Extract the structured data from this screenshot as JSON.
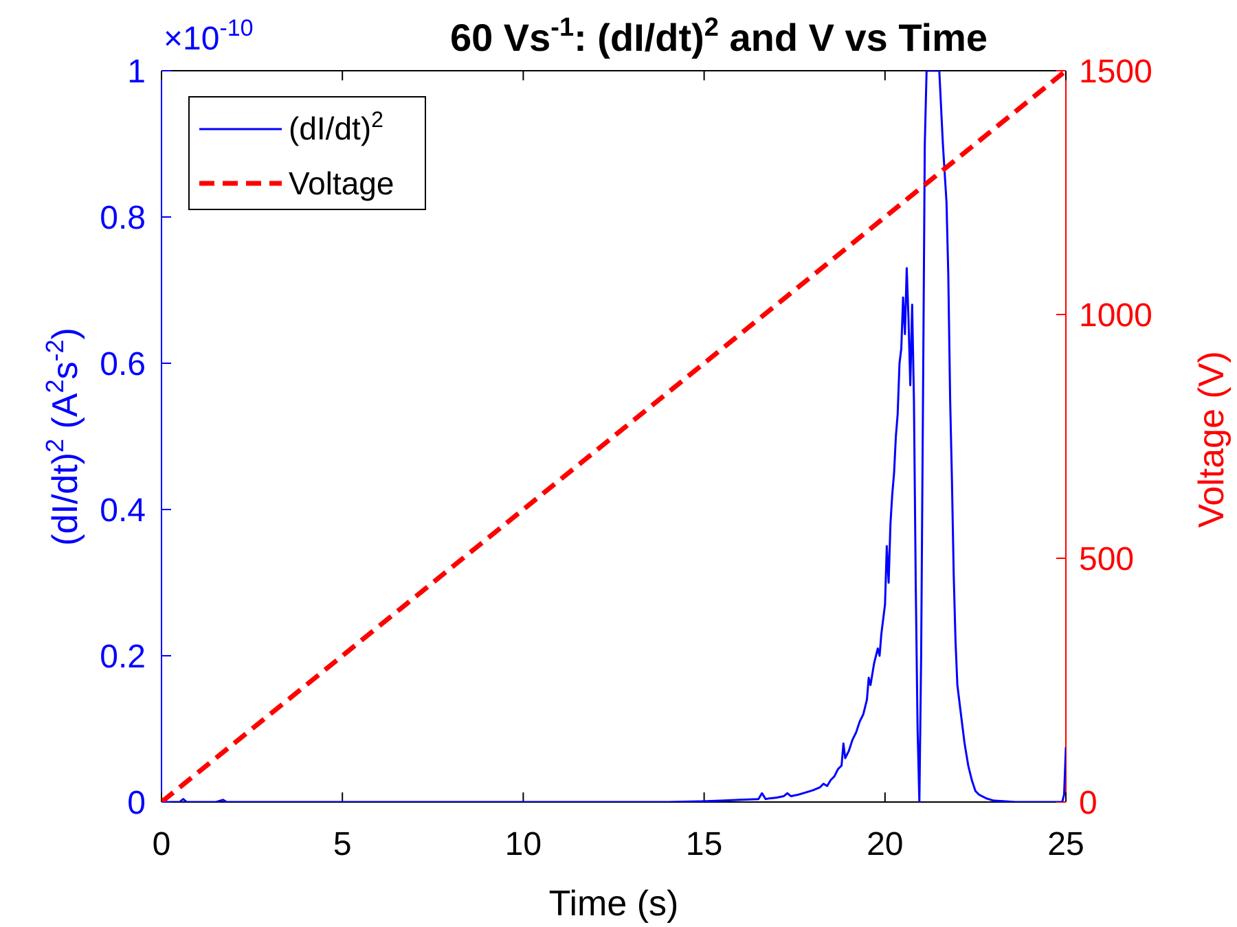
{
  "chart_data": {
    "type": "line",
    "title": "60 Vs-1: (dI/dt)2 and V vs Time",
    "title_parts": {
      "a": "60 Vs",
      "a_sup": "-1",
      "b": ": (dI/dt)",
      "b_sup": "2",
      "c": " and V vs Time"
    },
    "xlabel": "Time (s)",
    "ylabel_left": "(dI/dt)2 (A2s-2)",
    "ylabel_left_parts": {
      "a": "(dI/dt)",
      "a_sup": "2",
      "b": " (A",
      "b_sup": "2",
      "c": "s",
      "c_sup": "-2",
      "d": ")"
    },
    "ylabel_right": "Voltage (V)",
    "y_exponent": {
      "base": "×10",
      "power": "-10"
    },
    "xlim": [
      0,
      25
    ],
    "ylim_left": [
      0,
      1
    ],
    "ylim_right": [
      0,
      1500
    ],
    "xticks": [
      "0",
      "5",
      "10",
      "15",
      "20",
      "25"
    ],
    "yticks_left": [
      "0",
      "0.2",
      "0.4",
      "0.6",
      "0.8",
      "1"
    ],
    "yticks_right": [
      "0",
      "500",
      "1000",
      "1500"
    ],
    "legend": {
      "location": "top-left",
      "entries": [
        "(dI/dt)2",
        "Voltage"
      ],
      "entry1_base": "(dI/dt)",
      "entry1_sup": "2"
    },
    "colors": {
      "didt": "#0000ff",
      "voltage": "#ff0000",
      "axes": "#000000"
    },
    "series": [
      {
        "name": "(dI/dt)2",
        "axis": "left",
        "style": "solid",
        "x": [
          0,
          0.5,
          0.6,
          0.7,
          1.5,
          1.7,
          1.8,
          3,
          5,
          8,
          10,
          12,
          14,
          15,
          15.5,
          16,
          16.5,
          16.6,
          16.7,
          16.8,
          17,
          17.2,
          17.3,
          17.4,
          17.6,
          17.8,
          18.0,
          18.2,
          18.3,
          18.4,
          18.5,
          18.6,
          18.7,
          18.8,
          18.85,
          18.9,
          19.0,
          19.1,
          19.2,
          19.3,
          19.4,
          19.5,
          19.55,
          19.6,
          19.7,
          19.8,
          19.85,
          19.9,
          20.0,
          20.05,
          20.1,
          20.15,
          20.2,
          20.25,
          20.3,
          20.35,
          20.4,
          20.45,
          20.5,
          20.55,
          20.6,
          20.65,
          20.7,
          20.75,
          20.8,
          20.85,
          20.9,
          20.95,
          21.0,
          21.05,
          21.1,
          21.15,
          21.2,
          21.25,
          21.3,
          21.4,
          21.5,
          21.6,
          21.7,
          21.75,
          21.8,
          21.85,
          21.9,
          21.95,
          22.0,
          22.1,
          22.2,
          22.3,
          22.4,
          22.5,
          22.6,
          22.8,
          23.0,
          23.3,
          23.6,
          24.0,
          24.5,
          24.9,
          24.95,
          25.0
        ],
        "values": [
          0,
          0,
          0.004,
          0,
          0,
          0.003,
          0,
          0,
          0,
          0,
          0,
          0,
          0,
          0.001,
          0.002,
          0.003,
          0.004,
          0.012,
          0.004,
          0.005,
          0.006,
          0.008,
          0.012,
          0.008,
          0.01,
          0.013,
          0.016,
          0.02,
          0.025,
          0.022,
          0.03,
          0.035,
          0.045,
          0.05,
          0.08,
          0.06,
          0.07,
          0.085,
          0.095,
          0.11,
          0.12,
          0.14,
          0.17,
          0.16,
          0.19,
          0.21,
          0.2,
          0.23,
          0.27,
          0.35,
          0.3,
          0.38,
          0.42,
          0.45,
          0.5,
          0.53,
          0.6,
          0.62,
          0.69,
          0.64,
          0.73,
          0.66,
          0.57,
          0.68,
          0.55,
          0.3,
          0.1,
          0.0,
          0.2,
          0.55,
          0.9,
          1.0,
          1.0,
          1.0,
          1.0,
          1.0,
          1.0,
          0.9,
          0.82,
          0.72,
          0.55,
          0.44,
          0.31,
          0.22,
          0.16,
          0.12,
          0.08,
          0.05,
          0.03,
          0.015,
          0.01,
          0.005,
          0.002,
          0.001,
          0,
          0,
          0,
          0,
          0.01,
          0.075
        ]
      },
      {
        "name": "Voltage",
        "axis": "right",
        "style": "dashed",
        "x": [
          0,
          1,
          2,
          3,
          4,
          5,
          6,
          7,
          8,
          9,
          10,
          11,
          12,
          13,
          14,
          15,
          16,
          17,
          18,
          19,
          20,
          21,
          22,
          23,
          24,
          25
        ],
        "values": [
          0,
          60,
          120,
          180,
          240,
          300,
          360,
          420,
          480,
          540,
          600,
          660,
          720,
          780,
          840,
          900,
          960,
          1020,
          1080,
          1140,
          1200,
          1260,
          1320,
          1380,
          1440,
          1500
        ]
      }
    ]
  }
}
